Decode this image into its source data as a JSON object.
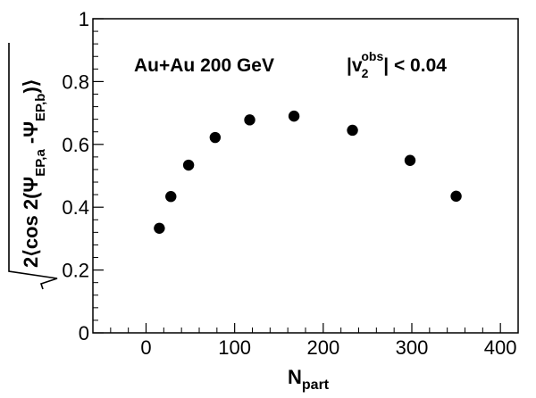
{
  "chart_data": {
    "type": "scatter",
    "x_domain": [
      -60,
      420
    ],
    "ylim": [
      0,
      1
    ],
    "x_ticks": [
      0,
      100,
      200,
      300,
      400
    ],
    "x_tick_labels": [
      "0",
      "100",
      "200",
      "300",
      "400"
    ],
    "y_ticks": [
      0,
      0.2,
      0.4,
      0.6,
      0.8,
      1
    ],
    "y_tick_labels": [
      "0",
      "0.2",
      "0.4",
      "0.6",
      "0.8",
      "1"
    ],
    "annotation": "Au+Au 200 GeV",
    "cut_label": {
      "prefix": "|v",
      "sub": "2",
      "sup": "obs",
      "suffix": "| < 0.04"
    },
    "xlabel": {
      "main": "N",
      "sub": "part"
    },
    "ylabel": {
      "p1": "2⟨cos 2(Ψ",
      "s1": "EP,a",
      "p2": " -Ψ",
      "s2": "EP,b",
      "p3": ")⟩"
    },
    "series": [
      {
        "marker": "filled-circle",
        "color": "#000000",
        "points": [
          {
            "x": 15,
            "y": 0.333
          },
          {
            "x": 28,
            "y": 0.434
          },
          {
            "x": 48,
            "y": 0.534
          },
          {
            "x": 78,
            "y": 0.622
          },
          {
            "x": 117,
            "y": 0.678
          },
          {
            "x": 167,
            "y": 0.69
          },
          {
            "x": 233,
            "y": 0.645
          },
          {
            "x": 298,
            "y": 0.549
          },
          {
            "x": 350,
            "y": 0.435
          }
        ]
      }
    ]
  }
}
